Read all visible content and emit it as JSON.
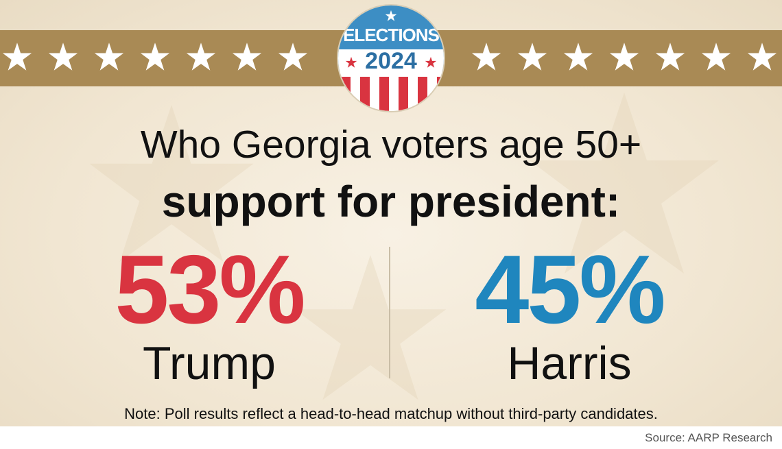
{
  "badge": {
    "line1": "ELECTIONS",
    "line2": "2024"
  },
  "headline": {
    "line1": "Who Georgia voters age 50+",
    "line2": "support for president:"
  },
  "candidates": [
    {
      "percent": "53%",
      "name": "Trump",
      "color": "#d93440"
    },
    {
      "percent": "45%",
      "name": "Harris",
      "color": "#1f86be"
    }
  ],
  "note": "Note: Poll results reflect a head-to-head matchup without third-party candidates.",
  "source": "Source: AARP Research",
  "colors": {
    "banner": "#a98a55",
    "background": "#f3e9d6"
  },
  "icons": {
    "banner_stars": "star-icon",
    "badge": "elections-badge-icon"
  }
}
